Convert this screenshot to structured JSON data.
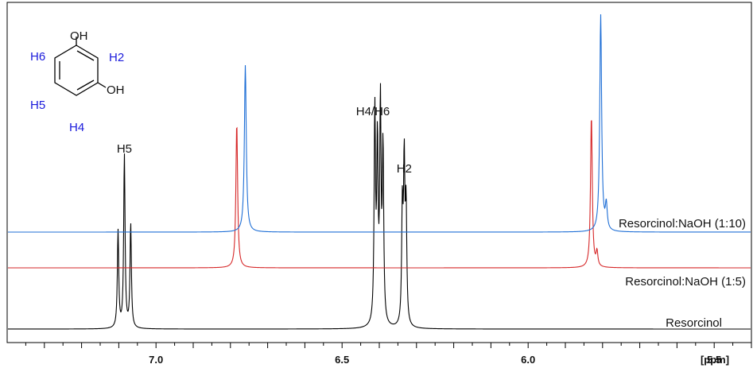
{
  "chart_data": {
    "type": "line",
    "title": "",
    "xlabel": "[ppm]",
    "xlim": [
      7.4,
      5.4
    ],
    "x_reversed": true,
    "x_ticks": [
      {
        "value": 7.0,
        "label": "7.0"
      },
      {
        "value": 6.5,
        "label": "6.5"
      },
      {
        "value": 6.0,
        "label": "6.0"
      },
      {
        "value": 5.5,
        "label": "5.5"
      }
    ],
    "grid": false,
    "series": [
      {
        "name": "Resorcinol",
        "color": "#000000",
        "peaks": [
          {
            "ppm": 7.102,
            "intensity": 0.56
          },
          {
            "ppm": 7.085,
            "intensity": 1.0
          },
          {
            "ppm": 7.068,
            "intensity": 0.6
          },
          {
            "ppm": 6.412,
            "intensity": 1.22
          },
          {
            "ppm": 6.405,
            "intensity": 1.0
          },
          {
            "ppm": 6.397,
            "intensity": 1.24
          },
          {
            "ppm": 6.39,
            "intensity": 1.0
          },
          {
            "ppm": 6.338,
            "intensity": 0.65
          },
          {
            "ppm": 6.333,
            "intensity": 0.9
          },
          {
            "ppm": 6.328,
            "intensity": 0.65
          }
        ]
      },
      {
        "name": "Resorcinol:NaOH (1:5)",
        "color": "#d62728",
        "peaks": [
          {
            "ppm": 6.783,
            "intensity": 1.0
          },
          {
            "ppm": 5.83,
            "intensity": 1.05
          },
          {
            "ppm": 5.815,
            "intensity": 0.1
          }
        ]
      },
      {
        "name": "Resorcinol:NaOH (1:10)",
        "color": "#1f6fd6",
        "peaks": [
          {
            "ppm": 6.76,
            "intensity": 1.0
          },
          {
            "ppm": 5.805,
            "intensity": 1.3
          },
          {
            "ppm": 5.79,
            "intensity": 0.15
          }
        ]
      }
    ],
    "annotations": [
      {
        "text": "H5",
        "ppm": 7.085
      },
      {
        "text": "H4/H6",
        "ppm": 6.4
      },
      {
        "text": "H2",
        "ppm": 6.333
      }
    ]
  },
  "structure": {
    "atoms": [
      "OH",
      "OH",
      "H6",
      "H2",
      "H5",
      "H4"
    ],
    "bond_color": "#000000",
    "label_color": "#1a1adb"
  }
}
